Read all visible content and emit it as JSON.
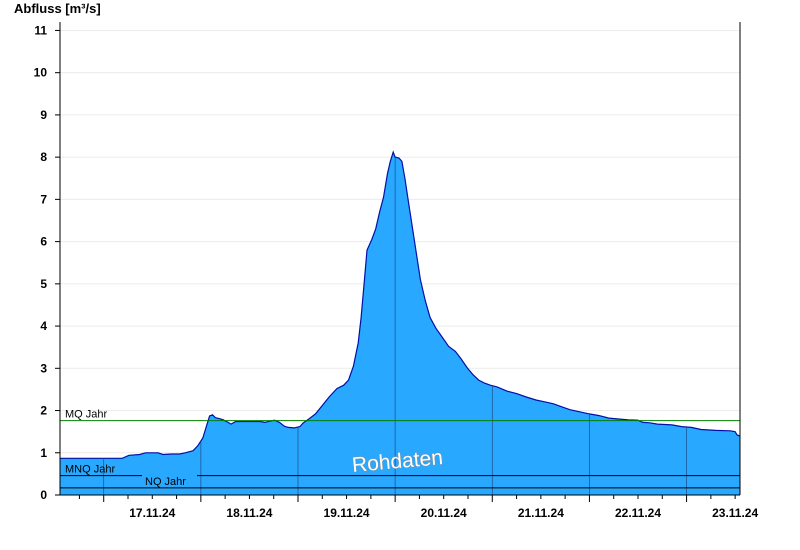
{
  "chart_data": {
    "type": "area",
    "ylabel": "Abfluss [m³/s]",
    "xlabel": "",
    "ylim": [
      0,
      11.2
    ],
    "yticks": [
      0,
      1,
      2,
      3,
      4,
      5,
      6,
      7,
      8,
      9,
      10,
      11
    ],
    "xlim": [
      16.55,
      23.55
    ],
    "xtick_labels": [
      "17.11.24",
      "18.11.24",
      "19.11.24",
      "20.11.24",
      "21.11.24",
      "22.11.24",
      "23.11.24"
    ],
    "day_boundaries": [
      17,
      18,
      19,
      20,
      21,
      22,
      23
    ],
    "fill_color": "#29a8ff",
    "line_color": "#0010a8",
    "grid": "horizontal",
    "watermark": "Rohdaten",
    "reference_lines": [
      {
        "label": "MQ Jahr",
        "value": 1.76,
        "color": "#008000"
      },
      {
        "label": "MNQ Jahr",
        "value": 0.46,
        "color": "#000000"
      },
      {
        "label": "NQ Jahr",
        "value": 0.17,
        "color": "#000000"
      }
    ],
    "series": [
      {
        "values": [
          [
            16.55,
            0.87
          ],
          [
            17.19,
            0.87
          ],
          [
            17.26,
            0.94
          ],
          [
            17.37,
            0.96
          ],
          [
            17.43,
            1.0
          ],
          [
            17.56,
            1.0
          ],
          [
            17.61,
            0.96
          ],
          [
            17.7,
            0.97
          ],
          [
            17.78,
            0.97
          ],
          [
            17.84,
            1.0
          ],
          [
            17.92,
            1.05
          ],
          [
            17.97,
            1.17
          ],
          [
            18.02,
            1.35
          ],
          [
            18.06,
            1.65
          ],
          [
            18.09,
            1.87
          ],
          [
            18.12,
            1.9
          ],
          [
            18.15,
            1.83
          ],
          [
            18.19,
            1.81
          ],
          [
            18.23,
            1.78
          ],
          [
            18.28,
            1.72
          ],
          [
            18.31,
            1.68
          ],
          [
            18.36,
            1.74
          ],
          [
            18.45,
            1.74
          ],
          [
            18.61,
            1.74
          ],
          [
            18.66,
            1.72
          ],
          [
            18.71,
            1.75
          ],
          [
            18.76,
            1.77
          ],
          [
            18.81,
            1.72
          ],
          [
            18.86,
            1.63
          ],
          [
            18.9,
            1.6
          ],
          [
            18.96,
            1.59
          ],
          [
            19.02,
            1.62
          ],
          [
            19.05,
            1.7
          ],
          [
            19.1,
            1.78
          ],
          [
            19.18,
            1.92
          ],
          [
            19.25,
            2.12
          ],
          [
            19.32,
            2.32
          ],
          [
            19.4,
            2.52
          ],
          [
            19.47,
            2.6
          ],
          [
            19.52,
            2.72
          ],
          [
            19.57,
            3.05
          ],
          [
            19.62,
            3.6
          ],
          [
            19.65,
            4.2
          ],
          [
            19.68,
            5.0
          ],
          [
            19.71,
            5.8
          ],
          [
            19.76,
            6.05
          ],
          [
            19.8,
            6.3
          ],
          [
            19.84,
            6.7
          ],
          [
            19.88,
            7.05
          ],
          [
            19.92,
            7.6
          ],
          [
            19.95,
            7.9
          ],
          [
            19.98,
            8.12
          ],
          [
            20.0,
            8.0
          ],
          [
            20.04,
            7.98
          ],
          [
            20.07,
            7.9
          ],
          [
            20.1,
            7.5
          ],
          [
            20.14,
            6.9
          ],
          [
            20.18,
            6.3
          ],
          [
            20.22,
            5.7
          ],
          [
            20.26,
            5.1
          ],
          [
            20.31,
            4.6
          ],
          [
            20.36,
            4.2
          ],
          [
            20.42,
            3.95
          ],
          [
            20.48,
            3.75
          ],
          [
            20.55,
            3.52
          ],
          [
            20.62,
            3.4
          ],
          [
            20.68,
            3.22
          ],
          [
            20.74,
            3.02
          ],
          [
            20.8,
            2.85
          ],
          [
            20.86,
            2.72
          ],
          [
            20.92,
            2.65
          ],
          [
            20.98,
            2.6
          ],
          [
            21.05,
            2.56
          ],
          [
            21.15,
            2.46
          ],
          [
            21.25,
            2.4
          ],
          [
            21.35,
            2.32
          ],
          [
            21.45,
            2.25
          ],
          [
            21.55,
            2.2
          ],
          [
            21.63,
            2.16
          ],
          [
            21.7,
            2.1
          ],
          [
            21.8,
            2.02
          ],
          [
            21.9,
            1.97
          ],
          [
            22.0,
            1.92
          ],
          [
            22.1,
            1.88
          ],
          [
            22.2,
            1.82
          ],
          [
            22.3,
            1.8
          ],
          [
            22.4,
            1.78
          ],
          [
            22.5,
            1.77
          ],
          [
            22.55,
            1.72
          ],
          [
            22.62,
            1.71
          ],
          [
            22.7,
            1.68
          ],
          [
            22.85,
            1.66
          ],
          [
            22.95,
            1.62
          ],
          [
            23.05,
            1.6
          ],
          [
            23.15,
            1.55
          ],
          [
            23.3,
            1.53
          ],
          [
            23.45,
            1.52
          ],
          [
            23.5,
            1.5
          ],
          [
            23.52,
            1.42
          ],
          [
            23.55,
            1.4
          ]
        ]
      }
    ]
  }
}
